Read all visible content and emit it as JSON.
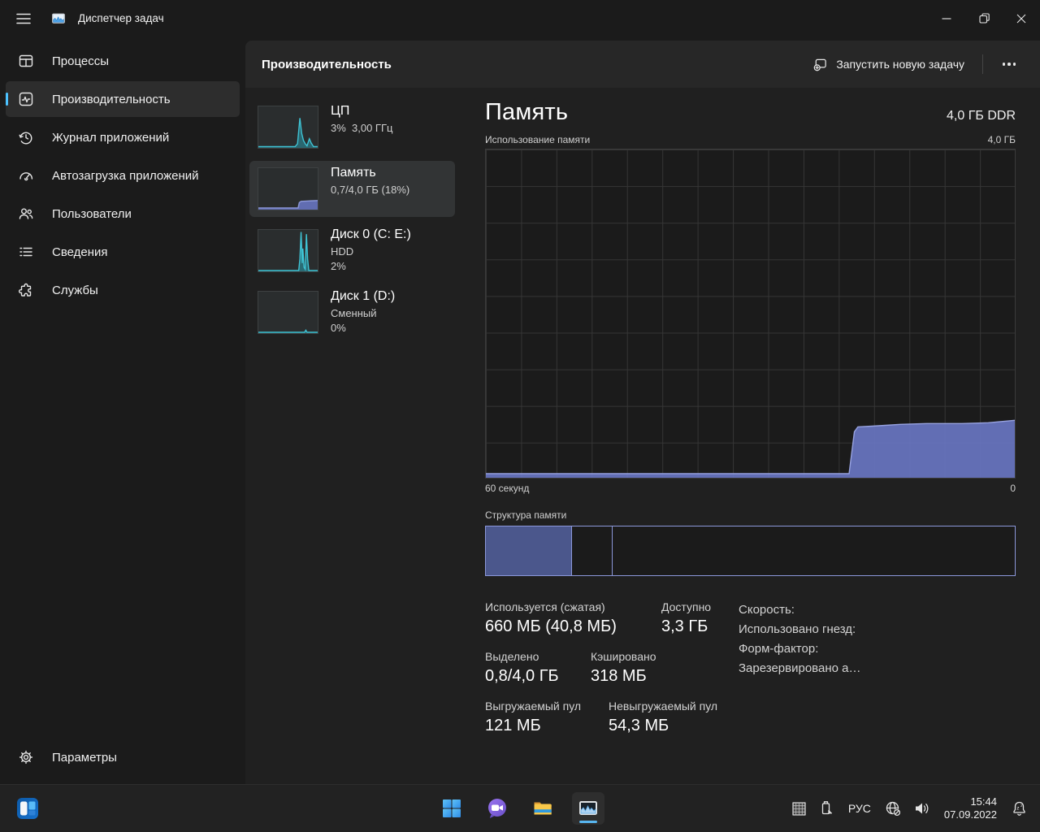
{
  "window": {
    "title": "Диспетчер задач"
  },
  "accent_color": "#4cc2ff",
  "sidebar": {
    "items": [
      {
        "label": "Процессы"
      },
      {
        "label": "Производительность",
        "selected": true
      },
      {
        "label": "Журнал приложений"
      },
      {
        "label": "Автозагрузка приложений"
      },
      {
        "label": "Пользователи"
      },
      {
        "label": "Сведения"
      },
      {
        "label": "Службы"
      }
    ],
    "settings_label": "Параметры"
  },
  "header": {
    "title": "Производительность",
    "run_new_task": "Запустить новую задачу"
  },
  "perf_list": [
    {
      "id": "cpu",
      "title": "ЦП",
      "sub1": "3%  3,00 ГГц"
    },
    {
      "id": "memory",
      "title": "Память",
      "sub1": "0,7/4,0 ГБ (18%)",
      "selected": true
    },
    {
      "id": "disk0",
      "title": "Диск 0 (C: E:)",
      "sub1": "HDD",
      "sub2": "2%"
    },
    {
      "id": "disk1",
      "title": "Диск 1 (D:)",
      "sub1": "Сменный",
      "sub2": "0%"
    }
  ],
  "memory_detail": {
    "title": "Память",
    "capacity": "4,0 ГБ DDR",
    "usage_label": "Использование памяти",
    "usage_max": "4,0 ГБ",
    "time_left": "60 секунд",
    "time_right": "0",
    "composition_label": "Структура памяти",
    "stats": {
      "used_label": "Используется (сжатая)",
      "used_value": "660 МБ (40,8 МБ)",
      "available_label": "Доступно",
      "available_value": "3,3 ГБ",
      "committed_label": "Выделено",
      "committed_value": "0,8/4,0 ГБ",
      "cached_label": "Кэшировано",
      "cached_value": "318 МБ",
      "paged_label": "Выгружаемый пул",
      "paged_value": "121 МБ",
      "nonpaged_label": "Невыгружаемый пул",
      "nonpaged_value": "54,3 МБ",
      "speed_label": "Скорость:",
      "slots_label": "Использовано гнезд:",
      "form_label": "Форм-фактор:",
      "reserved_label": "Зарезервировано а…"
    }
  },
  "chart_data": [
    {
      "type": "area",
      "title": "Использование памяти",
      "ylabel": "ГБ",
      "ylim": [
        0,
        4.0
      ],
      "x_range": [
        60,
        0
      ],
      "xlabel_left": "60 секунд",
      "xlabel_right": "0",
      "grid": true,
      "stroke": "#97a2e0",
      "fill": "rgba(106,120,197,0.9)",
      "points": [
        [
          60,
          0.05
        ],
        [
          18.8,
          0.05
        ],
        [
          18.2,
          0.56
        ],
        [
          17.8,
          0.62
        ],
        [
          16,
          0.63
        ],
        [
          13,
          0.65
        ],
        [
          10,
          0.66
        ],
        [
          6,
          0.66
        ],
        [
          3,
          0.67
        ],
        [
          0,
          0.7
        ]
      ]
    },
    {
      "type": "stacked-bar",
      "title": "Структура памяти",
      "segments": [
        {
          "name": "in-use",
          "fraction": 0.163
        },
        {
          "name": "modified",
          "fraction": 0.077
        },
        {
          "name": "standby-free",
          "fraction": 0.76
        }
      ]
    }
  ],
  "sparklines": {
    "cpu": {
      "stroke": "#3fc3d4",
      "fill": "rgba(42,160,176,0.5)",
      "points": [
        [
          0,
          0.03
        ],
        [
          0.62,
          0.03
        ],
        [
          0.66,
          0.1
        ],
        [
          0.7,
          0.72
        ],
        [
          0.73,
          0.35
        ],
        [
          0.76,
          0.18
        ],
        [
          0.79,
          0.1
        ],
        [
          0.82,
          0.05
        ],
        [
          0.86,
          0.22
        ],
        [
          0.89,
          0.12
        ],
        [
          0.93,
          0.03
        ],
        [
          1,
          0.03
        ]
      ]
    },
    "memory": {
      "stroke": "#8c98d9",
      "fill": "rgba(107,121,200,0.85)",
      "points": [
        [
          0,
          0.04
        ],
        [
          0.67,
          0.04
        ],
        [
          0.69,
          0.17
        ],
        [
          0.72,
          0.2
        ],
        [
          0.85,
          0.21
        ],
        [
          1,
          0.22
        ]
      ]
    },
    "disk0": {
      "stroke": "#3fc3d4",
      "fill": "rgba(42,160,176,0.55)",
      "points": [
        [
          0,
          0.02
        ],
        [
          0.68,
          0.02
        ],
        [
          0.7,
          0.3
        ],
        [
          0.72,
          0.95
        ],
        [
          0.74,
          0.2
        ],
        [
          0.75,
          0.55
        ],
        [
          0.77,
          0.1
        ],
        [
          0.79,
          0.05
        ],
        [
          0.81,
          0.9
        ],
        [
          0.83,
          0.3
        ],
        [
          0.85,
          0.02
        ],
        [
          1,
          0.02
        ]
      ]
    },
    "disk1": {
      "stroke": "#3fc3d4",
      "fill": "rgba(42,160,176,0.45)",
      "points": [
        [
          0,
          0.02
        ],
        [
          0.78,
          0.02
        ],
        [
          0.8,
          0.07
        ],
        [
          0.82,
          0.02
        ],
        [
          1,
          0.02
        ]
      ]
    }
  },
  "taskbar": {
    "language": "РУС",
    "time": "15:44",
    "date": "07.09.2022",
    "icons": [
      "widgets-icon",
      "start-icon",
      "chat-icon",
      "file-explorer-icon",
      "task-manager-icon",
      "hidden-grid-icon",
      "usb-device-icon",
      "network-offline-icon",
      "volume-icon",
      "focus-assist-bell-icon"
    ]
  }
}
